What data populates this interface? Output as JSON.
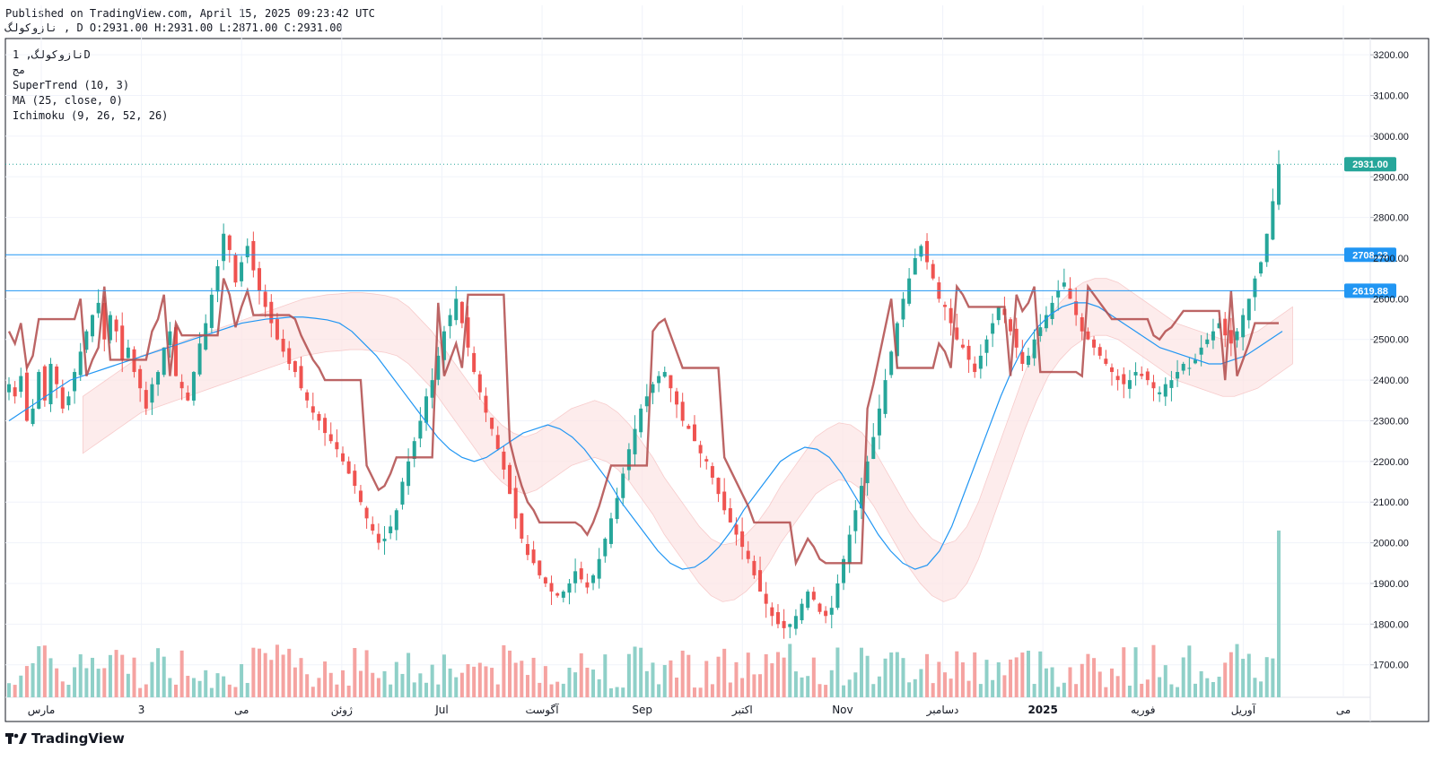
{
  "header": {
    "published": "Published on TradingView.com, April 15, 2025 09:23:42 UTC",
    "ohlc_line": "نازوکولگ , D O:2931.00 H:2931.00 L:2871.00 C:2931.00"
  },
  "legend": {
    "symbol": "نازوکولگ, 1D",
    "exchange": "مج",
    "indicators": [
      "SuperTrend (10, 3)",
      "MA (25, close, 0)",
      "Ichimoku (9, 26, 52, 26)"
    ]
  },
  "brand": {
    "name": "TradingView",
    "logo_icon": "tradingview-logo-icon"
  },
  "colors": {
    "up": "#26a69a",
    "down": "#ef5350",
    "supertrend_up": "#4caf50",
    "supertrend_down": "#b04a4a",
    "ma": "#2196f3",
    "horizontal_line": "#2196f3",
    "cloud_bull": "#e8f5e9",
    "cloud_bear": "#fde4e4",
    "last_price": "#26a69a"
  },
  "chart_data": {
    "type": "candlestick",
    "y_ticks": [
      "3200.00",
      "3100.00",
      "3000.00",
      "2900.00",
      "2800.00",
      "2700.00",
      "2600.00",
      "2500.00",
      "2400.00",
      "2300.00",
      "2200.00",
      "2100.00",
      "2000.00",
      "1900.00",
      "1800.00",
      "1700.00"
    ],
    "ylim": [
      1620,
      3240
    ],
    "x_labels": [
      {
        "label": "مارس",
        "bold": false
      },
      {
        "label": "3",
        "bold": false
      },
      {
        "label": "می",
        "bold": false
      },
      {
        "label": "ژوئن",
        "bold": false
      },
      {
        "label": "Jul",
        "bold": false
      },
      {
        "label": "آگوست",
        "bold": false
      },
      {
        "label": "Sep",
        "bold": false
      },
      {
        "label": "اکتبر",
        "bold": false
      },
      {
        "label": "Nov",
        "bold": false
      },
      {
        "label": "دسامبر",
        "bold": false
      },
      {
        "label": "2025",
        "bold": true
      },
      {
        "label": "فوریه",
        "bold": false
      },
      {
        "label": "آوریل",
        "bold": false
      },
      {
        "label": "می",
        "bold": false
      }
    ],
    "horizontal_lines": [
      {
        "label": "2708.23",
        "value": 2708.23
      },
      {
        "label": "2619.88",
        "value": 2619.88
      }
    ],
    "last_price": {
      "label": "2931.00",
      "value": 2931
    },
    "candles": [
      2390,
      2360,
      2410,
      2300,
      2330,
      2420,
      2350,
      2440,
      2390,
      2330,
      2360,
      2420,
      2470,
      2520,
      2560,
      2590,
      2500,
      2560,
      2520,
      2450,
      2480,
      2420,
      2380,
      2330,
      2390,
      2420,
      2480,
      2520,
      2410,
      2380,
      2350,
      2420,
      2490,
      2540,
      2610,
      2680,
      2760,
      2720,
      2640,
      2690,
      2730,
      2670,
      2620,
      2580,
      2540,
      2500,
      2470,
      2440,
      2420,
      2380,
      2350,
      2320,
      2300,
      2270,
      2250,
      2230,
      2200,
      2170,
      2140,
      2100,
      2060,
      2030,
      2000,
      2010,
      2040,
      2080,
      2150,
      2200,
      2250,
      2300,
      2360,
      2400,
      2460,
      2520,
      2560,
      2600,
      2540,
      2480,
      2420,
      2370,
      2320,
      2280,
      2230,
      2180,
      2120,
      2060,
      2010,
      1970,
      1950,
      1920,
      1900,
      1880,
      1870,
      1880,
      1900,
      1930,
      1910,
      1890,
      1920,
      1960,
      2010,
      2060,
      2110,
      2170,
      2230,
      2280,
      2330,
      2360,
      2390,
      2410,
      2420,
      2380,
      2340,
      2300,
      2280,
      2250,
      2220,
      2200,
      2160,
      2120,
      2080,
      2050,
      2020,
      1990,
      1960,
      1920,
      1880,
      1850,
      1820,
      1800,
      1790,
      1800,
      1820,
      1850,
      1880,
      1860,
      1830,
      1820,
      1840,
      1900,
      1960,
      2020,
      2080,
      2140,
      2200,
      2260,
      2330,
      2400,
      2470,
      2540,
      2600,
      2650,
      2700,
      2730,
      2690,
      2650,
      2600,
      2580,
      2540,
      2500,
      2480,
      2450,
      2420,
      2460,
      2500,
      2540,
      2580,
      2560,
      2520,
      2480,
      2440,
      2460,
      2500,
      2530,
      2560,
      2590,
      2620,
      2640,
      2600,
      2560,
      2520,
      2500,
      2480,
      2460,
      2440,
      2420,
      2400,
      2390,
      2400,
      2420,
      2410,
      2400,
      2380,
      2370,
      2390,
      2400,
      2420,
      2440,
      2430,
      2450,
      2480,
      2500,
      2520,
      2540,
      2510,
      2490,
      2520,
      2560,
      2600,
      2650,
      2690,
      2760,
      2840,
      2931
    ],
    "ma_values": [
      2300,
      2320,
      2340,
      2360,
      2380,
      2400,
      2410,
      2420,
      2430,
      2440,
      2450,
      2460,
      2470,
      2480,
      2490,
      2500,
      2510,
      2520,
      2530,
      2540,
      2545,
      2550,
      2552,
      2555,
      2555,
      2552,
      2548,
      2540,
      2520,
      2490,
      2460,
      2420,
      2380,
      2340,
      2300,
      2260,
      2230,
      2210,
      2200,
      2210,
      2230,
      2250,
      2270,
      2280,
      2290,
      2280,
      2260,
      2230,
      2190,
      2150,
      2100,
      2060,
      2020,
      1980,
      1950,
      1935,
      1940,
      1960,
      1990,
      2030,
      2080,
      2120,
      2160,
      2200,
      2220,
      2235,
      2230,
      2210,
      2170,
      2120,
      2070,
      2020,
      1980,
      1950,
      1935,
      1945,
      1980,
      2040,
      2120,
      2200,
      2280,
      2360,
      2430,
      2490,
      2530,
      2560,
      2580,
      2590,
      2590,
      2580,
      2560,
      2540,
      2520,
      2500,
      2480,
      2470,
      2460,
      2450,
      2440,
      2440,
      2450,
      2460,
      2480,
      2500,
      2520
    ]
  }
}
